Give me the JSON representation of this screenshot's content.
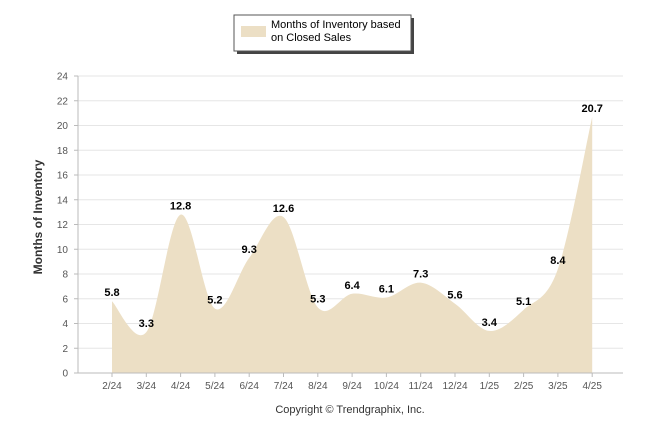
{
  "chart_data": {
    "type": "area",
    "categories": [
      "2/24",
      "3/24",
      "4/24",
      "5/24",
      "6/24",
      "7/24",
      "8/24",
      "9/24",
      "10/24",
      "11/24",
      "12/24",
      "1/25",
      "2/25",
      "3/25",
      "4/25"
    ],
    "series": [
      {
        "name": "Months of Inventory based on Closed Sales",
        "values": [
          5.8,
          3.3,
          12.8,
          5.2,
          9.3,
          12.6,
          5.3,
          6.4,
          6.1,
          7.3,
          5.6,
          3.4,
          5.1,
          8.4,
          20.7
        ],
        "labels": [
          "5.8",
          "3.3",
          "12.8",
          "5.2",
          "9.3",
          "12.6",
          "5.3",
          "6.4",
          "6.1",
          "7.3",
          "5.6",
          "3.4",
          "5.1",
          "8.4",
          "20.7"
        ],
        "color": "#ecdfc5"
      }
    ],
    "title": "",
    "xlabel": "",
    "ylabel": "Months of Inventory",
    "ylim": [
      0,
      24
    ],
    "yticks": [
      "0",
      "2",
      "4",
      "6",
      "8",
      "10",
      "12",
      "14",
      "16",
      "18",
      "20",
      "22",
      "24"
    ],
    "grid": true,
    "legend_position": "top-center"
  },
  "legend": {
    "line1": "Months of Inventory based",
    "line2": "on Closed Sales"
  },
  "footer": "Copyright © Trendgraphix, Inc.",
  "colors": {
    "area_fill": "#ecdfc5",
    "grid": "#e6e6e6",
    "axis": "#bbbbbb"
  }
}
